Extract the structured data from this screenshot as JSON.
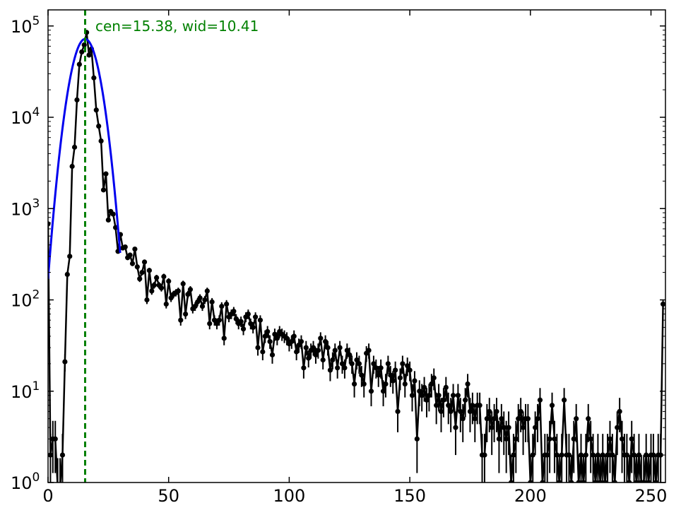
{
  "chart_data": {
    "type": "line",
    "title": "",
    "xlabel": "",
    "ylabel": "",
    "xlim": [
      0,
      256
    ],
    "ylim": [
      1,
      150000
    ],
    "yscale": "log",
    "grid": false,
    "x_ticks": [
      0,
      50,
      100,
      150,
      200,
      250
    ],
    "x_tick_labels": [
      "0",
      "50",
      "100",
      "150",
      "200",
      "250"
    ],
    "y_ticks": [
      1,
      10,
      100,
      1000,
      10000,
      100000
    ],
    "y_tick_labels": [
      {
        "base": "10",
        "exp": "0"
      },
      {
        "base": "10",
        "exp": "1"
      },
      {
        "base": "10",
        "exp": "2"
      },
      {
        "base": "10",
        "exp": "3"
      },
      {
        "base": "10",
        "exp": "4"
      },
      {
        "base": "10",
        "exp": "5"
      }
    ],
    "annotation": {
      "text": "cen=15.38, wid=10.41",
      "color": "#008000"
    },
    "colors": {
      "data": "#000000",
      "fit": "#0000ee",
      "center_line": "#008000"
    },
    "center_line_x": 15.38,
    "fit": {
      "type": "gaussian",
      "center": 15.38,
      "width": 10.41,
      "peak": 72000
    },
    "series": [
      {
        "type": "errorbar_step",
        "points": [
          [
            0,
            680
          ],
          [
            1,
            2
          ],
          [
            2,
            3
          ],
          [
            3,
            3
          ],
          [
            4,
            0.9
          ],
          [
            5,
            0.9
          ],
          [
            6,
            2
          ],
          [
            7,
            21
          ],
          [
            8,
            190
          ],
          [
            9,
            300
          ],
          [
            10,
            2900
          ],
          [
            11,
            4700
          ],
          [
            12,
            15500
          ],
          [
            13,
            38000
          ],
          [
            14,
            52000
          ],
          [
            15,
            62000
          ],
          [
            16,
            85000
          ],
          [
            17,
            48000
          ],
          [
            18,
            56000
          ],
          [
            19,
            27000
          ],
          [
            20,
            12000
          ],
          [
            21,
            8000
          ],
          [
            22,
            5500
          ],
          [
            23,
            1600
          ],
          [
            24,
            2400
          ],
          [
            25,
            750
          ],
          [
            26,
            930
          ],
          [
            27,
            870
          ],
          [
            28,
            620
          ],
          [
            29,
            340
          ],
          [
            30,
            520
          ],
          [
            31,
            370
          ],
          [
            32,
            380
          ],
          [
            33,
            290
          ],
          [
            34,
            310
          ],
          [
            35,
            250
          ],
          [
            36,
            360
          ],
          [
            37,
            230
          ],
          [
            38,
            170
          ],
          [
            39,
            200
          ],
          [
            40,
            260
          ],
          [
            41,
            100
          ],
          [
            42,
            210
          ],
          [
            43,
            125
          ],
          [
            44,
            145
          ],
          [
            45,
            175
          ],
          [
            46,
            145
          ],
          [
            47,
            135
          ],
          [
            48,
            180
          ],
          [
            49,
            90
          ],
          [
            50,
            160
          ],
          [
            51,
            105
          ],
          [
            52,
            115
          ],
          [
            53,
            120
          ],
          [
            54,
            125
          ],
          [
            55,
            60
          ],
          [
            56,
            150
          ],
          [
            57,
            70
          ],
          [
            58,
            115
          ],
          [
            59,
            130
          ],
          [
            60,
            80
          ],
          [
            61,
            85
          ],
          [
            62,
            95
          ],
          [
            63,
            105
          ],
          [
            64,
            85
          ],
          [
            65,
            100
          ],
          [
            66,
            125
          ],
          [
            67,
            55
          ],
          [
            68,
            95
          ],
          [
            69,
            60
          ],
          [
            70,
            55
          ],
          [
            71,
            60
          ],
          [
            72,
            85
          ],
          [
            73,
            38
          ],
          [
            74,
            90
          ],
          [
            75,
            65
          ],
          [
            76,
            70
          ],
          [
            77,
            75
          ],
          [
            78,
            62
          ],
          [
            79,
            55
          ],
          [
            80,
            58
          ],
          [
            81,
            48
          ],
          [
            82,
            65
          ],
          [
            83,
            70
          ],
          [
            84,
            55
          ],
          [
            85,
            50
          ],
          [
            86,
            65
          ],
          [
            87,
            30
          ],
          [
            88,
            60
          ],
          [
            89,
            27
          ],
          [
            90,
            40
          ],
          [
            91,
            45
          ],
          [
            92,
            35
          ],
          [
            93,
            25
          ],
          [
            94,
            42
          ],
          [
            95,
            38
          ],
          [
            96,
            45
          ],
          [
            97,
            42
          ],
          [
            98,
            40
          ],
          [
            99,
            38
          ],
          [
            100,
            33
          ],
          [
            101,
            35
          ],
          [
            102,
            40
          ],
          [
            103,
            27
          ],
          [
            104,
            32
          ],
          [
            105,
            35
          ],
          [
            106,
            18
          ],
          [
            107,
            30
          ],
          [
            108,
            23
          ],
          [
            109,
            28
          ],
          [
            110,
            30
          ],
          [
            111,
            25
          ],
          [
            112,
            28
          ],
          [
            113,
            38
          ],
          [
            114,
            22
          ],
          [
            115,
            35
          ],
          [
            116,
            30
          ],
          [
            117,
            17
          ],
          [
            118,
            22
          ],
          [
            119,
            28
          ],
          [
            120,
            18
          ],
          [
            121,
            30
          ],
          [
            122,
            20
          ],
          [
            123,
            18
          ],
          [
            124,
            28
          ],
          [
            125,
            25
          ],
          [
            126,
            20
          ],
          [
            127,
            12
          ],
          [
            128,
            22
          ],
          [
            129,
            20
          ],
          [
            130,
            15
          ],
          [
            131,
            12
          ],
          [
            132,
            26
          ],
          [
            133,
            28
          ],
          [
            134,
            10
          ],
          [
            135,
            20
          ],
          [
            136,
            18
          ],
          [
            137,
            15
          ],
          [
            138,
            18
          ],
          [
            139,
            10
          ],
          [
            140,
            12
          ],
          [
            141,
            20
          ],
          [
            142,
            15
          ],
          [
            143,
            13
          ],
          [
            144,
            17
          ],
          [
            145,
            6
          ],
          [
            146,
            14
          ],
          [
            147,
            20
          ],
          [
            148,
            12
          ],
          [
            149,
            19
          ],
          [
            150,
            17
          ],
          [
            151,
            9
          ],
          [
            152,
            13
          ],
          [
            153,
            3
          ],
          [
            154,
            10
          ],
          [
            155,
            9
          ],
          [
            156,
            11
          ],
          [
            157,
            8
          ],
          [
            158,
            9
          ],
          [
            159,
            12
          ],
          [
            160,
            14
          ],
          [
            161,
            7
          ],
          [
            162,
            9
          ],
          [
            163,
            6
          ],
          [
            164,
            8
          ],
          [
            165,
            11
          ],
          [
            166,
            7
          ],
          [
            167,
            6
          ],
          [
            168,
            9
          ],
          [
            169,
            4
          ],
          [
            170,
            9
          ],
          [
            171,
            6
          ],
          [
            172,
            5
          ],
          [
            173,
            8
          ],
          [
            174,
            12
          ],
          [
            175,
            6
          ],
          [
            176,
            7
          ],
          [
            177,
            5
          ],
          [
            178,
            7
          ],
          [
            179,
            7
          ],
          [
            180,
            2
          ],
          [
            181,
            2
          ],
          [
            182,
            5
          ],
          [
            183,
            6
          ],
          [
            184,
            4
          ],
          [
            185,
            5
          ],
          [
            186,
            6
          ],
          [
            187,
            3
          ],
          [
            188,
            5
          ],
          [
            189,
            4
          ],
          [
            190,
            3
          ],
          [
            191,
            4
          ],
          [
            192,
            1
          ],
          [
            193,
            2
          ],
          [
            194,
            3
          ],
          [
            195,
            5
          ],
          [
            196,
            6
          ],
          [
            197,
            4
          ],
          [
            198,
            5
          ],
          [
            199,
            5
          ],
          [
            200,
            1
          ],
          [
            201,
            2
          ],
          [
            202,
            4
          ],
          [
            203,
            5
          ],
          [
            204,
            8
          ],
          [
            205,
            1
          ],
          [
            206,
            2
          ],
          [
            207,
            2
          ],
          [
            208,
            3
          ],
          [
            209,
            7
          ],
          [
            210,
            3
          ],
          [
            211,
            2
          ],
          [
            212,
            1
          ],
          [
            213,
            2
          ],
          [
            214,
            8
          ],
          [
            215,
            2
          ],
          [
            216,
            2
          ],
          [
            217,
            1
          ],
          [
            218,
            3
          ],
          [
            219,
            5
          ],
          [
            220,
            1
          ],
          [
            221,
            2
          ],
          [
            222,
            1
          ],
          [
            223,
            2
          ],
          [
            224,
            5
          ],
          [
            225,
            3
          ],
          [
            226,
            2
          ],
          [
            227,
            1
          ],
          [
            228,
            2
          ],
          [
            229,
            1
          ],
          [
            230,
            2
          ],
          [
            231,
            1
          ],
          [
            232,
            2
          ],
          [
            233,
            3
          ],
          [
            234,
            2
          ],
          [
            235,
            1
          ],
          [
            236,
            4
          ],
          [
            237,
            6
          ],
          [
            238,
            3
          ],
          [
            239,
            2
          ],
          [
            240,
            2
          ],
          [
            241,
            1
          ],
          [
            242,
            3
          ],
          [
            243,
            2
          ],
          [
            244,
            1
          ],
          [
            245,
            2
          ],
          [
            246,
            1
          ],
          [
            247,
            1
          ],
          [
            248,
            2
          ],
          [
            249,
            1
          ],
          [
            250,
            2
          ],
          [
            251,
            2
          ],
          [
            252,
            1
          ],
          [
            253,
            2
          ],
          [
            254,
            2
          ],
          [
            255,
            90
          ]
        ]
      }
    ]
  }
}
